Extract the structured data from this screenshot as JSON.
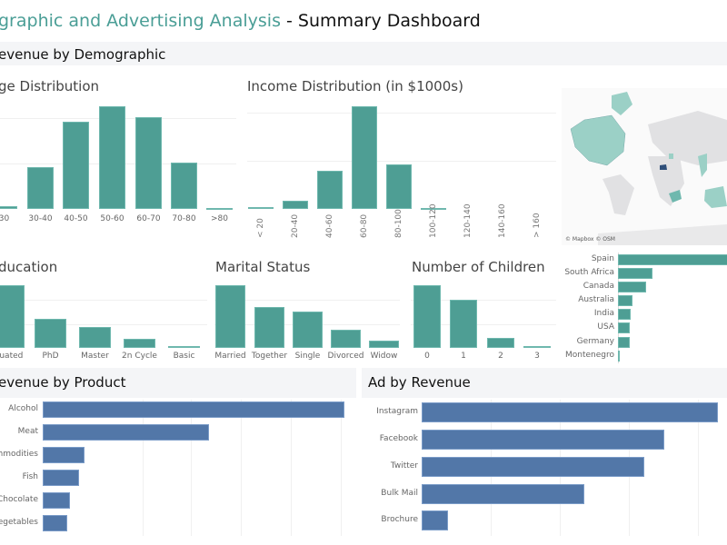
{
  "header": {
    "title_accent": "graphic and Advertising Analysis",
    "title_rest": " - Summary Dashboard"
  },
  "demographic_section": {
    "title": "evenue by Demographic"
  },
  "product_section": {
    "title": "evenue by Product"
  },
  "ad_section": {
    "title": "Ad by Revenue"
  },
  "map": {
    "credit": "© Mapbox © OSM",
    "highlighted_countries": [
      "Spain",
      "South Africa",
      "Canada",
      "Australia",
      "India",
      "USA",
      "Germany",
      "Montenegro"
    ]
  },
  "colors": {
    "teal": "#4e9e94",
    "blue": "#5277a8",
    "title_accent": "#4a9e96"
  },
  "chart_data": [
    {
      "id": "age",
      "type": "bar",
      "title": "ge Distribution",
      "categories": [
        "30",
        "30-40",
        "40-50",
        "50-60",
        "60-70",
        "70-80",
        ">80"
      ],
      "values": [
        3,
        41,
        85,
        100,
        89,
        45,
        1
      ]
    },
    {
      "id": "income",
      "type": "bar",
      "title": "Income Distribution (in $1000s)",
      "categories": [
        "< 20",
        "20-40",
        "40-60",
        "60-80",
        "80-100",
        "100-120",
        "120-140",
        "140-160",
        "> 160"
      ],
      "values": [
        2,
        8,
        37,
        100,
        43,
        1,
        0,
        0,
        0
      ]
    },
    {
      "id": "education",
      "type": "bar",
      "title": "ducation",
      "categories": [
        "duated",
        "PhD",
        "Master",
        "2n Cycle",
        "Basic"
      ],
      "values": [
        100,
        46,
        33,
        14,
        3
      ]
    },
    {
      "id": "marital",
      "type": "bar",
      "title": "Marital Status",
      "categories": [
        "Married",
        "Together",
        "Single",
        "Divorced",
        "Widow"
      ],
      "values": [
        100,
        65,
        58,
        29,
        12
      ]
    },
    {
      "id": "children",
      "type": "bar",
      "title": "Number of Children",
      "categories": [
        "0",
        "1",
        "2",
        "3"
      ],
      "values": [
        100,
        77,
        16,
        3
      ]
    },
    {
      "id": "country",
      "type": "bar",
      "orientation": "horizontal",
      "categories": [
        "Spain",
        "South Africa",
        "Canada",
        "Australia",
        "India",
        "USA",
        "Germany",
        "Montenegro"
      ],
      "values": [
        100,
        29,
        24,
        12,
        11,
        10,
        10,
        1
      ]
    },
    {
      "id": "product",
      "type": "bar",
      "orientation": "horizontal",
      "categories": [
        "Alcohol",
        "Meat",
        "mmodities",
        "Fish",
        "Chocolate",
        "egetables"
      ],
      "values": [
        100,
        55,
        14,
        12,
        9,
        8
      ]
    },
    {
      "id": "ad",
      "type": "bar",
      "orientation": "horizontal",
      "categories": [
        "Instagram",
        "Facebook",
        "Twitter",
        "Bulk Mail",
        "Brochure"
      ],
      "values": [
        100,
        82,
        75,
        55,
        9
      ]
    }
  ]
}
